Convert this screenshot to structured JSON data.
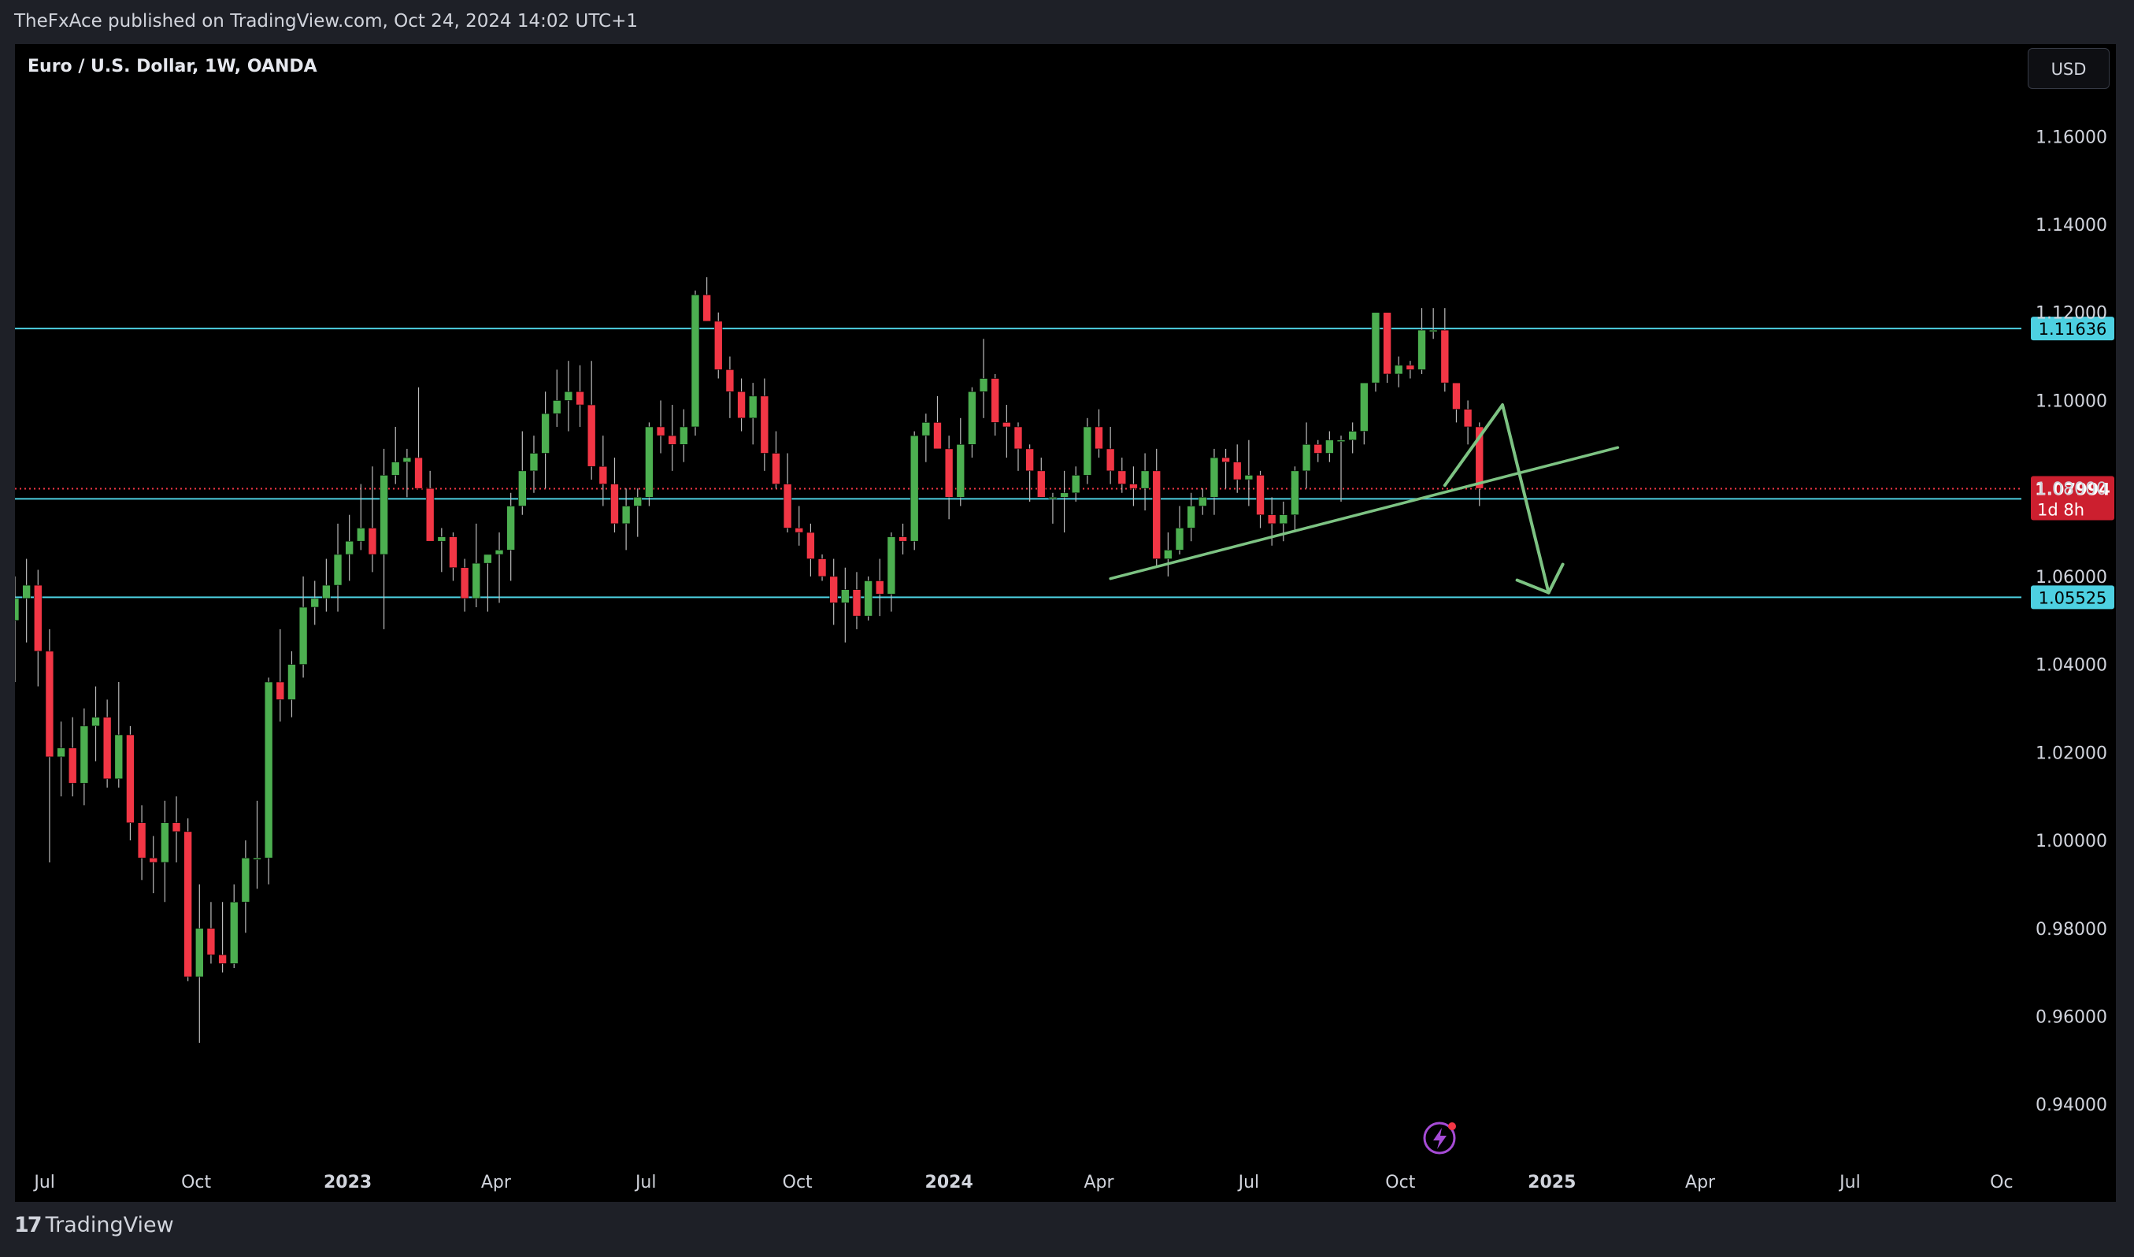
{
  "header": {
    "text": "TheFxAce published on TradingView.com, Oct 24, 2024 14:02 UTC+1"
  },
  "chart": {
    "symbol_title": "Euro / U.S. Dollar, 1W, OANDA",
    "currency": "USD"
  },
  "footer": {
    "brand": "TradingView",
    "logo_glyph": "17"
  },
  "colors": {
    "up": "#4caf50",
    "down": "#f23645",
    "level": "#4dd0e1",
    "drawing": "#7dc383",
    "current": "#f23645"
  },
  "chart_data": {
    "type": "candlestick",
    "title": "Euro / U.S. Dollar, 1W, OANDA",
    "ylim": [
      0.925,
      1.181
    ],
    "xlim": [
      "2022-06-13",
      "2025-10-13"
    ],
    "y_ticks": [
      "1.16000",
      "1.14000",
      "1.12000",
      "1.10000",
      "1.08000",
      "1.06000",
      "1.04000",
      "1.02000",
      "1.00000",
      "0.98000",
      "0.96000",
      "0.94000"
    ],
    "x_ticks": [
      {
        "label": "Jul",
        "date": "2022-07-01"
      },
      {
        "label": "Oct",
        "date": "2022-10-01"
      },
      {
        "label": "2023",
        "date": "2023-01-01",
        "bold": true
      },
      {
        "label": "Apr",
        "date": "2023-04-01"
      },
      {
        "label": "Jul",
        "date": "2023-07-01"
      },
      {
        "label": "Oct",
        "date": "2023-10-01"
      },
      {
        "label": "2024",
        "date": "2024-01-01",
        "bold": true
      },
      {
        "label": "Apr",
        "date": "2024-04-01"
      },
      {
        "label": "Jul",
        "date": "2024-07-01"
      },
      {
        "label": "Oct",
        "date": "2024-10-01"
      },
      {
        "label": "2025",
        "date": "2025-01-01",
        "bold": true
      },
      {
        "label": "Apr",
        "date": "2025-04-01"
      },
      {
        "label": "Jul",
        "date": "2025-07-01"
      },
      {
        "label": "Oc",
        "date": "2025-10-01"
      }
    ],
    "first_candle_date": "2022-06-13",
    "candles_ohlc": [
      [
        1.05,
        1.06,
        1.036,
        1.055
      ],
      [
        1.055,
        1.064,
        1.045,
        1.058
      ],
      [
        1.058,
        1.0615,
        1.035,
        1.043
      ],
      [
        1.043,
        1.048,
        0.995,
        1.019
      ],
      [
        1.019,
        1.027,
        1.01,
        1.021
      ],
      [
        1.021,
        1.028,
        1.01,
        1.013
      ],
      [
        1.013,
        1.03,
        1.008,
        1.026
      ],
      [
        1.026,
        1.035,
        1.018,
        1.028
      ],
      [
        1.028,
        1.032,
        1.012,
        1.014
      ],
      [
        1.014,
        1.036,
        1.012,
        1.024
      ],
      [
        1.024,
        1.026,
        1.0,
        1.004
      ],
      [
        1.004,
        1.008,
        0.991,
        0.996
      ],
      [
        0.996,
        1.001,
        0.988,
        0.995
      ],
      [
        0.995,
        1.009,
        0.986,
        1.004
      ],
      [
        1.004,
        1.01,
        0.995,
        1.002
      ],
      [
        1.002,
        1.005,
        0.968,
        0.969
      ],
      [
        0.969,
        0.99,
        0.954,
        0.98
      ],
      [
        0.98,
        0.986,
        0.972,
        0.974
      ],
      [
        0.974,
        0.986,
        0.97,
        0.972
      ],
      [
        0.972,
        0.99,
        0.971,
        0.986
      ],
      [
        0.986,
        1.0,
        0.979,
        0.996
      ],
      [
        0.996,
        1.009,
        0.989,
        0.996
      ],
      [
        0.996,
        1.037,
        0.99,
        1.036
      ],
      [
        1.036,
        1.048,
        1.027,
        1.032
      ],
      [
        1.032,
        1.043,
        1.028,
        1.04
      ],
      [
        1.04,
        1.06,
        1.037,
        1.053
      ],
      [
        1.053,
        1.059,
        1.049,
        1.055
      ],
      [
        1.055,
        1.064,
        1.052,
        1.058
      ],
      [
        1.058,
        1.072,
        1.052,
        1.065
      ],
      [
        1.065,
        1.074,
        1.059,
        1.068
      ],
      [
        1.068,
        1.081,
        1.066,
        1.071
      ],
      [
        1.071,
        1.085,
        1.061,
        1.065
      ],
      [
        1.065,
        1.089,
        1.048,
        1.083
      ],
      [
        1.083,
        1.094,
        1.081,
        1.086
      ],
      [
        1.086,
        1.089,
        1.078,
        1.087
      ],
      [
        1.087,
        1.103,
        1.08,
        1.08
      ],
      [
        1.08,
        1.084,
        1.07,
        1.068
      ],
      [
        1.068,
        1.071,
        1.061,
        1.069
      ],
      [
        1.069,
        1.07,
        1.059,
        1.062
      ],
      [
        1.062,
        1.064,
        1.052,
        1.055
      ],
      [
        1.055,
        1.072,
        1.053,
        1.063
      ],
      [
        1.063,
        1.065,
        1.052,
        1.065
      ],
      [
        1.065,
        1.07,
        1.054,
        1.066
      ],
      [
        1.066,
        1.079,
        1.059,
        1.076
      ],
      [
        1.076,
        1.093,
        1.074,
        1.084
      ],
      [
        1.084,
        1.092,
        1.079,
        1.088
      ],
      [
        1.088,
        1.102,
        1.08,
        1.097
      ],
      [
        1.097,
        1.107,
        1.094,
        1.1
      ],
      [
        1.1,
        1.109,
        1.093,
        1.102
      ],
      [
        1.102,
        1.108,
        1.094,
        1.099
      ],
      [
        1.099,
        1.109,
        1.082,
        1.085
      ],
      [
        1.085,
        1.092,
        1.076,
        1.081
      ],
      [
        1.081,
        1.087,
        1.07,
        1.072
      ],
      [
        1.072,
        1.08,
        1.066,
        1.076
      ],
      [
        1.076,
        1.08,
        1.069,
        1.078
      ],
      [
        1.078,
        1.095,
        1.076,
        1.094
      ],
      [
        1.094,
        1.1,
        1.088,
        1.092
      ],
      [
        1.092,
        1.099,
        1.084,
        1.09
      ],
      [
        1.09,
        1.098,
        1.086,
        1.094
      ],
      [
        1.094,
        1.125,
        1.092,
        1.124
      ],
      [
        1.124,
        1.128,
        1.118,
        1.118
      ],
      [
        1.118,
        1.12,
        1.105,
        1.107
      ],
      [
        1.107,
        1.11,
        1.096,
        1.102
      ],
      [
        1.102,
        1.105,
        1.093,
        1.096
      ],
      [
        1.096,
        1.104,
        1.09,
        1.101
      ],
      [
        1.101,
        1.105,
        1.084,
        1.088
      ],
      [
        1.088,
        1.093,
        1.08,
        1.081
      ],
      [
        1.081,
        1.088,
        1.07,
        1.071
      ],
      [
        1.071,
        1.076,
        1.067,
        1.07
      ],
      [
        1.07,
        1.072,
        1.06,
        1.064
      ],
      [
        1.064,
        1.065,
        1.059,
        1.06
      ],
      [
        1.06,
        1.064,
        1.049,
        1.054
      ],
      [
        1.054,
        1.062,
        1.045,
        1.057
      ],
      [
        1.057,
        1.061,
        1.048,
        1.051
      ],
      [
        1.051,
        1.06,
        1.05,
        1.059
      ],
      [
        1.059,
        1.064,
        1.051,
        1.056
      ],
      [
        1.056,
        1.07,
        1.052,
        1.069
      ],
      [
        1.069,
        1.072,
        1.065,
        1.068
      ],
      [
        1.068,
        1.093,
        1.066,
        1.092
      ],
      [
        1.092,
        1.097,
        1.086,
        1.095
      ],
      [
        1.095,
        1.101,
        1.089,
        1.089
      ],
      [
        1.089,
        1.092,
        1.073,
        1.078
      ],
      [
        1.078,
        1.096,
        1.076,
        1.09
      ],
      [
        1.09,
        1.103,
        1.087,
        1.102
      ],
      [
        1.102,
        1.114,
        1.096,
        1.105
      ],
      [
        1.105,
        1.106,
        1.092,
        1.095
      ],
      [
        1.095,
        1.099,
        1.087,
        1.094
      ],
      [
        1.094,
        1.095,
        1.084,
        1.089
      ],
      [
        1.089,
        1.09,
        1.077,
        1.084
      ],
      [
        1.084,
        1.087,
        1.078,
        1.078
      ],
      [
        1.078,
        1.079,
        1.072,
        1.078
      ],
      [
        1.078,
        1.084,
        1.07,
        1.079
      ],
      [
        1.079,
        1.085,
        1.077,
        1.083
      ],
      [
        1.083,
        1.096,
        1.081,
        1.094
      ],
      [
        1.094,
        1.098,
        1.087,
        1.089
      ],
      [
        1.089,
        1.094,
        1.081,
        1.084
      ],
      [
        1.084,
        1.087,
        1.079,
        1.081
      ],
      [
        1.081,
        1.085,
        1.076,
        1.08
      ],
      [
        1.08,
        1.088,
        1.075,
        1.084
      ],
      [
        1.084,
        1.089,
        1.062,
        1.064
      ],
      [
        1.064,
        1.07,
        1.06,
        1.066
      ],
      [
        1.066,
        1.076,
        1.065,
        1.071
      ],
      [
        1.071,
        1.079,
        1.068,
        1.076
      ],
      [
        1.076,
        1.08,
        1.074,
        1.078
      ],
      [
        1.078,
        1.089,
        1.074,
        1.087
      ],
      [
        1.087,
        1.089,
        1.08,
        1.086
      ],
      [
        1.086,
        1.09,
        1.079,
        1.082
      ],
      [
        1.082,
        1.091,
        1.076,
        1.083
      ],
      [
        1.083,
        1.084,
        1.071,
        1.074
      ],
      [
        1.074,
        1.078,
        1.067,
        1.072
      ],
      [
        1.072,
        1.077,
        1.068,
        1.074
      ],
      [
        1.074,
        1.085,
        1.07,
        1.084
      ],
      [
        1.084,
        1.095,
        1.08,
        1.09
      ],
      [
        1.09,
        1.091,
        1.086,
        1.088
      ],
      [
        1.088,
        1.093,
        1.086,
        1.091
      ],
      [
        1.091,
        1.092,
        1.077,
        1.091
      ],
      [
        1.091,
        1.095,
        1.088,
        1.093
      ],
      [
        1.093,
        1.104,
        1.09,
        1.104
      ],
      [
        1.104,
        1.12,
        1.102,
        1.12
      ],
      [
        1.12,
        1.12,
        1.104,
        1.106
      ],
      [
        1.106,
        1.11,
        1.103,
        1.108
      ],
      [
        1.108,
        1.109,
        1.105,
        1.107
      ],
      [
        1.107,
        1.121,
        1.106,
        1.116
      ],
      [
        1.116,
        1.121,
        1.114,
        1.116
      ],
      [
        1.116,
        1.121,
        1.102,
        1.104
      ],
      [
        1.104,
        1.104,
        1.095,
        1.098
      ],
      [
        1.098,
        1.1,
        1.09,
        1.094
      ],
      [
        1.094,
        1.095,
        1.076,
        1.08
      ]
    ],
    "horizontal_levels": [
      {
        "value": 1.11636,
        "label": "1.11636"
      },
      {
        "value": 1.07763,
        "label": "1.07763"
      },
      {
        "value": 1.05525,
        "label": "1.05525"
      }
    ],
    "current_price": {
      "value": 1.07994,
      "label": "1.07994",
      "countdown": "1d 8h"
    },
    "trend_line": {
      "from": {
        "date": "2024-04-08",
        "price": 1.0595
      },
      "to": {
        "date": "2025-02-10",
        "price": 1.0893
      }
    },
    "projection_arrow": [
      {
        "date": "2024-10-28",
        "price": 1.0807
      },
      {
        "date": "2024-12-02",
        "price": 1.099
      },
      {
        "date": "2024-12-30",
        "price": 1.0563
      }
    ]
  }
}
